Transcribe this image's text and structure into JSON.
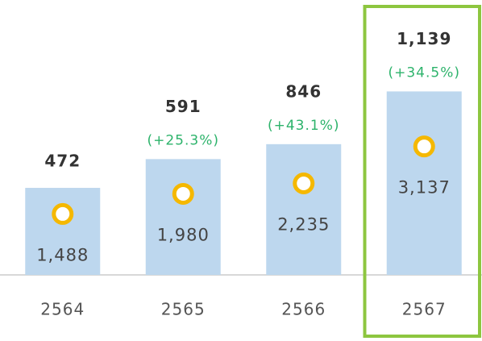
{
  "chart_data": {
    "type": "bar",
    "categories": [
      "2564",
      "2565",
      "2566",
      "2567"
    ],
    "values": [
      1488,
      1980,
      2235,
      3137
    ],
    "value_labels": [
      "1,488",
      "1,980",
      "2,235",
      "3,137"
    ],
    "color": "#bdd7ee",
    "totals": {
      "values": [
        472,
        591,
        846,
        1139
      ],
      "value_labels": [
        "472",
        "591",
        "846",
        "1,139"
      ]
    },
    "growth_labels": [
      null,
      "(+25.3%)",
      "(+43.1%)",
      "(+34.5%)"
    ],
    "growth_color": "#2db36b",
    "marker_color": "#f5b800",
    "ylim": [
      0,
      4700
    ],
    "highlight": 3,
    "highlight_color": "#8dc63f"
  }
}
